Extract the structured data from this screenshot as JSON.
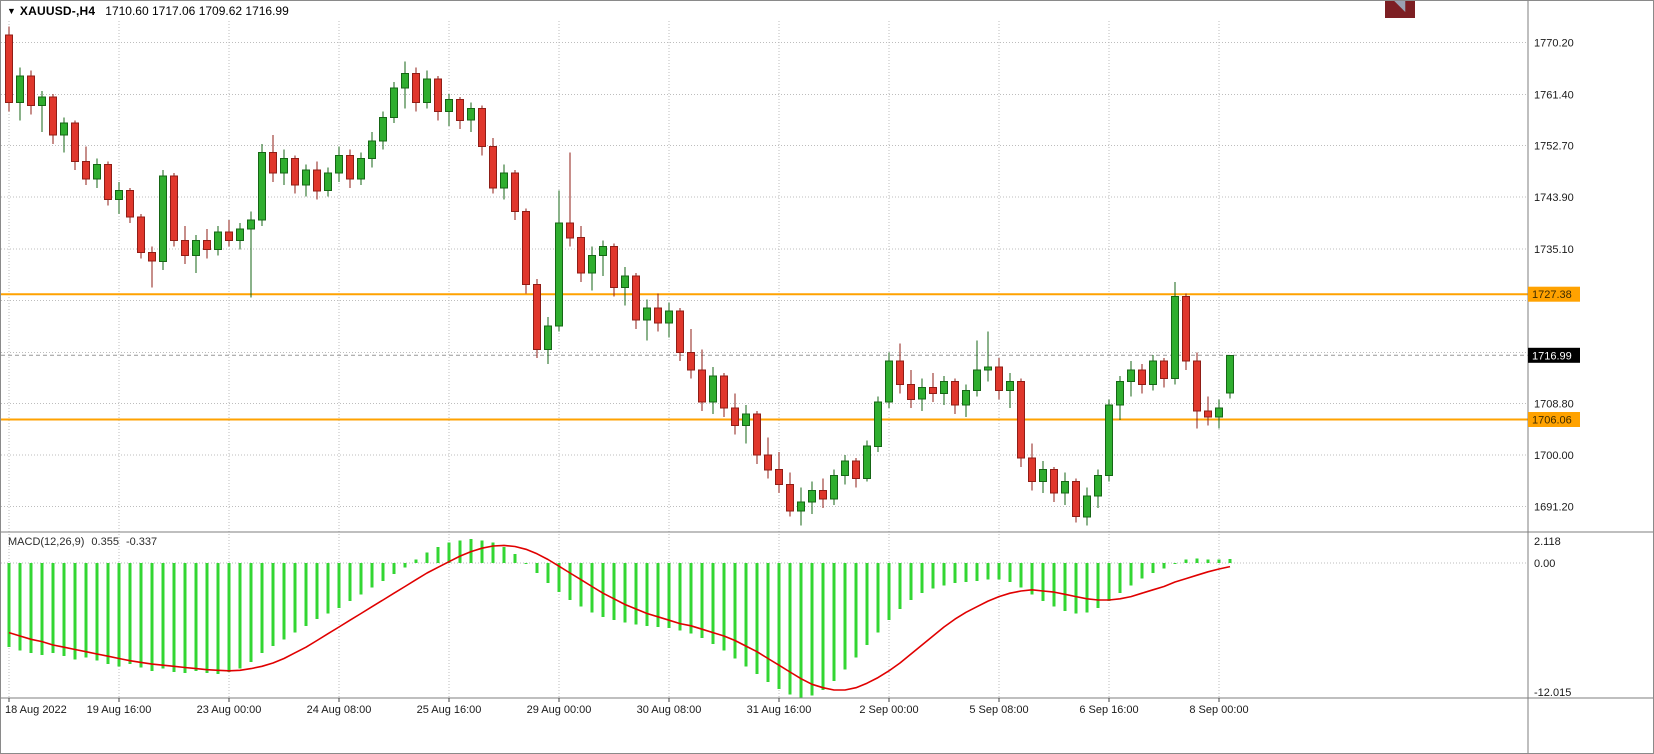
{
  "window": {
    "symbol_tf": "XAUUSD-,H4",
    "ohlc_text": "1710.60 1717.06 1709.62 1716.99"
  },
  "icons": {
    "dropdown": "▼",
    "shift_marker": "◥"
  },
  "colors": {
    "bull": "#2fae2f",
    "bull_border": "#156615",
    "bear": "#e0372c",
    "bear_border": "#8f1d16",
    "hline": "#ffa200",
    "macd_hist": "#33d633",
    "macd_signal": "#e00000",
    "grid": "#bdbdbd",
    "separator": "#7f7f7f",
    "current_tag_bg": "#000000",
    "current_tag_text": "#ffffff",
    "tag_text": "#3d2b00",
    "axis_text": "#1a1a1a"
  },
  "chart_data": {
    "type": "candlestick",
    "symbol": "XAUUSD-",
    "timeframe": "H4",
    "price_axis": {
      "ylim": [
        1686.9,
        1773.9
      ],
      "gridlines": [
        1770.2,
        1761.4,
        1752.7,
        1743.9,
        1735.1,
        1726.3,
        1717.5,
        1708.8,
        1700.0,
        1691.2
      ],
      "labels": [
        {
          "price": 1770.2,
          "text": "1770.20"
        },
        {
          "price": 1761.4,
          "text": "1761.40"
        },
        {
          "price": 1752.7,
          "text": "1752.70"
        },
        {
          "price": 1743.9,
          "text": "1743.90"
        },
        {
          "price": 1735.1,
          "text": "1735.10"
        },
        {
          "price": 1708.8,
          "text": "1708.80"
        },
        {
          "price": 1700.0,
          "text": "1700.00"
        },
        {
          "price": 1691.2,
          "text": "1691.20"
        }
      ],
      "current_price": "1716.99"
    },
    "hlines": [
      {
        "price": 1727.38,
        "label": "1727.38"
      },
      {
        "price": 1706.06,
        "label": "1706.06"
      }
    ],
    "time_labels": [
      {
        "i": 0,
        "label": "18 Aug 2022"
      },
      {
        "i": 10,
        "label": "19 Aug 16:00"
      },
      {
        "i": 20,
        "label": "23 Aug 00:00"
      },
      {
        "i": 30,
        "label": "24 Aug 08:00"
      },
      {
        "i": 40,
        "label": "25 Aug 16:00"
      },
      {
        "i": 50,
        "label": "29 Aug 00:00"
      },
      {
        "i": 60,
        "label": "30 Aug 08:00"
      },
      {
        "i": 70,
        "label": "31 Aug 16:00"
      },
      {
        "i": 80,
        "label": "2 Sep 00:00"
      },
      {
        "i": 90,
        "label": "5 Sep 08:00"
      },
      {
        "i": 100,
        "label": "6 Sep 16:00"
      },
      {
        "i": 110,
        "label": "8 Sep 00:00"
      }
    ],
    "candles": [
      [
        1771.5,
        1773.0,
        1758.5,
        1760.0
      ],
      [
        1760.0,
        1766.0,
        1757.0,
        1764.5
      ],
      [
        1764.5,
        1765.5,
        1758.0,
        1759.5
      ],
      [
        1759.5,
        1762.0,
        1755.0,
        1761.0
      ],
      [
        1761.0,
        1761.5,
        1753.0,
        1754.5
      ],
      [
        1754.5,
        1757.5,
        1751.5,
        1756.5
      ],
      [
        1756.5,
        1757.0,
        1748.5,
        1750.0
      ],
      [
        1750.0,
        1752.5,
        1746.0,
        1747.0
      ],
      [
        1747.0,
        1750.5,
        1745.5,
        1749.5
      ],
      [
        1749.5,
        1750.0,
        1742.5,
        1743.5
      ],
      [
        1743.5,
        1746.5,
        1741.0,
        1745.0
      ],
      [
        1745.0,
        1745.5,
        1739.5,
        1740.5
      ],
      [
        1740.5,
        1741.0,
        1733.5,
        1734.5
      ],
      [
        1734.5,
        1735.5,
        1728.5,
        1733.0
      ],
      [
        1733.0,
        1748.5,
        1731.5,
        1747.5
      ],
      [
        1747.5,
        1748.0,
        1735.5,
        1736.5
      ],
      [
        1736.5,
        1739.0,
        1732.5,
        1734.0
      ],
      [
        1734.0,
        1737.5,
        1731.0,
        1736.5
      ],
      [
        1736.5,
        1738.5,
        1733.5,
        1735.0
      ],
      [
        1735.0,
        1739.0,
        1734.0,
        1738.0
      ],
      [
        1738.0,
        1740.0,
        1735.5,
        1736.5
      ],
      [
        1736.5,
        1739.5,
        1735.0,
        1738.5
      ],
      [
        1738.5,
        1741.5,
        1726.8,
        1740.0
      ],
      [
        1740.0,
        1753.0,
        1739.0,
        1751.5
      ],
      [
        1751.5,
        1754.5,
        1746.5,
        1748.0
      ],
      [
        1748.0,
        1752.0,
        1746.0,
        1750.5
      ],
      [
        1750.5,
        1751.0,
        1744.5,
        1746.0
      ],
      [
        1746.0,
        1749.5,
        1744.0,
        1748.5
      ],
      [
        1748.5,
        1750.0,
        1743.5,
        1745.0
      ],
      [
        1745.0,
        1749.0,
        1744.0,
        1748.0
      ],
      [
        1748.0,
        1752.5,
        1746.5,
        1751.0
      ],
      [
        1751.0,
        1752.0,
        1745.5,
        1747.0
      ],
      [
        1747.0,
        1751.5,
        1746.0,
        1750.5
      ],
      [
        1750.5,
        1755.0,
        1749.0,
        1753.5
      ],
      [
        1753.5,
        1758.5,
        1752.0,
        1757.5
      ],
      [
        1757.5,
        1763.5,
        1756.5,
        1762.5
      ],
      [
        1762.5,
        1767.0,
        1759.0,
        1765.0
      ],
      [
        1765.0,
        1766.0,
        1758.5,
        1760.0
      ],
      [
        1760.0,
        1765.5,
        1759.0,
        1764.0
      ],
      [
        1764.0,
        1764.5,
        1757.0,
        1758.5
      ],
      [
        1758.5,
        1761.5,
        1756.0,
        1760.5
      ],
      [
        1760.5,
        1761.0,
        1755.5,
        1757.0
      ],
      [
        1757.0,
        1760.0,
        1755.0,
        1759.0
      ],
      [
        1759.0,
        1759.5,
        1751.0,
        1752.5
      ],
      [
        1752.5,
        1754.0,
        1744.5,
        1745.5
      ],
      [
        1745.5,
        1749.5,
        1743.5,
        1748.0
      ],
      [
        1748.0,
        1748.5,
        1740.0,
        1741.5
      ],
      [
        1741.5,
        1742.0,
        1727.5,
        1729.0
      ],
      [
        1729.0,
        1730.0,
        1716.5,
        1718.0
      ],
      [
        1718.0,
        1723.5,
        1715.5,
        1722.0
      ],
      [
        1722.0,
        1745.0,
        1721.0,
        1739.5
      ],
      [
        1739.5,
        1751.5,
        1735.5,
        1737.0
      ],
      [
        1737.0,
        1739.0,
        1729.5,
        1731.0
      ],
      [
        1731.0,
        1735.5,
        1728.0,
        1734.0
      ],
      [
        1734.0,
        1736.5,
        1730.5,
        1735.5
      ],
      [
        1735.5,
        1736.0,
        1727.0,
        1728.5
      ],
      [
        1728.5,
        1732.0,
        1725.5,
        1730.5
      ],
      [
        1730.5,
        1731.0,
        1721.5,
        1723.0
      ],
      [
        1723.0,
        1726.5,
        1719.5,
        1725.0
      ],
      [
        1725.0,
        1727.5,
        1721.0,
        1722.5
      ],
      [
        1722.5,
        1726.0,
        1720.0,
        1724.5
      ],
      [
        1724.5,
        1725.0,
        1716.0,
        1717.5
      ],
      [
        1717.5,
        1721.5,
        1713.0,
        1714.5
      ],
      [
        1714.5,
        1718.0,
        1707.5,
        1709.0
      ],
      [
        1709.0,
        1715.0,
        1707.0,
        1713.5
      ],
      [
        1713.5,
        1714.0,
        1706.5,
        1708.0
      ],
      [
        1708.0,
        1710.5,
        1703.5,
        1705.0
      ],
      [
        1705.0,
        1708.5,
        1702.0,
        1707.0
      ],
      [
        1707.0,
        1707.5,
        1698.5,
        1700.0
      ],
      [
        1700.0,
        1703.0,
        1696.0,
        1697.5
      ],
      [
        1697.5,
        1700.5,
        1693.5,
        1695.0
      ],
      [
        1695.0,
        1697.0,
        1689.5,
        1690.5
      ],
      [
        1690.5,
        1694.5,
        1688.0,
        1692.0
      ],
      [
        1692.0,
        1695.5,
        1690.0,
        1694.0
      ],
      [
        1694.0,
        1696.0,
        1691.0,
        1692.5
      ],
      [
        1692.5,
        1697.5,
        1691.5,
        1696.5
      ],
      [
        1696.5,
        1700.0,
        1695.0,
        1699.0
      ],
      [
        1699.0,
        1699.5,
        1694.5,
        1696.0
      ],
      [
        1696.0,
        1702.5,
        1695.5,
        1701.5
      ],
      [
        1701.5,
        1710.0,
        1700.5,
        1709.0
      ],
      [
        1709.0,
        1717.5,
        1708.0,
        1716.0
      ],
      [
        1716.0,
        1719.0,
        1710.5,
        1712.0
      ],
      [
        1712.0,
        1714.5,
        1708.0,
        1709.5
      ],
      [
        1709.5,
        1713.0,
        1707.5,
        1711.5
      ],
      [
        1711.5,
        1714.0,
        1709.0,
        1710.5
      ],
      [
        1710.5,
        1713.5,
        1708.5,
        1712.5
      ],
      [
        1712.5,
        1713.0,
        1707.0,
        1708.5
      ],
      [
        1708.5,
        1712.0,
        1706.5,
        1711.0
      ],
      [
        1711.0,
        1719.5,
        1710.0,
        1714.5
      ],
      [
        1714.5,
        1721.0,
        1712.5,
        1715.0
      ],
      [
        1715.0,
        1716.5,
        1709.5,
        1711.0
      ],
      [
        1711.0,
        1714.0,
        1708.0,
        1712.5
      ],
      [
        1712.5,
        1713.0,
        1698.0,
        1699.5
      ],
      [
        1699.5,
        1702.0,
        1694.0,
        1695.5
      ],
      [
        1695.5,
        1699.0,
        1693.5,
        1697.5
      ],
      [
        1697.5,
        1698.0,
        1692.0,
        1693.5
      ],
      [
        1693.5,
        1697.0,
        1691.5,
        1695.5
      ],
      [
        1695.5,
        1696.0,
        1688.5,
        1689.5
      ],
      [
        1689.5,
        1694.5,
        1688.0,
        1693.0
      ],
      [
        1693.0,
        1697.5,
        1691.0,
        1696.5
      ],
      [
        1696.5,
        1709.5,
        1695.5,
        1708.5
      ],
      [
        1708.5,
        1713.5,
        1706.0,
        1712.5
      ],
      [
        1712.5,
        1716.0,
        1710.0,
        1714.5
      ],
      [
        1714.5,
        1715.5,
        1710.5,
        1712.0
      ],
      [
        1712.0,
        1717.0,
        1711.0,
        1716.0
      ],
      [
        1716.0,
        1716.5,
        1711.5,
        1713.0
      ],
      [
        1713.0,
        1729.5,
        1712.0,
        1727.0
      ],
      [
        1727.0,
        1727.5,
        1714.5,
        1716.0
      ],
      [
        1716.0,
        1717.5,
        1704.5,
        1707.5
      ],
      [
        1707.5,
        1710.0,
        1705.0,
        1706.5
      ],
      [
        1706.5,
        1709.5,
        1704.5,
        1708.0
      ],
      [
        1710.6,
        1717.06,
        1709.62,
        1716.99
      ]
    ],
    "macd": {
      "label": "MACD(12,26,9)",
      "value": "0.355",
      "signal_value": "-0.337",
      "ylim": [
        -12.015,
        2.118
      ],
      "axis_labels": {
        "top": "2.118",
        "zero": "0.00",
        "bottom": "-12.015"
      },
      "hist": [
        -7.5,
        -7.8,
        -8.0,
        -8.2,
        -8.0,
        -8.3,
        -8.6,
        -8.4,
        -8.7,
        -9.0,
        -9.2,
        -9.0,
        -9.3,
        -9.6,
        -9.4,
        -9.7,
        -9.8,
        -9.6,
        -9.8,
        -9.9,
        -9.7,
        -9.4,
        -8.8,
        -8.0,
        -7.4,
        -6.8,
        -6.2,
        -5.6,
        -5.0,
        -4.5,
        -4.0,
        -3.4,
        -2.8,
        -2.2,
        -1.6,
        -1.0,
        -0.4,
        0.3,
        0.9,
        1.4,
        1.8,
        2.0,
        2.118,
        2.0,
        1.8,
        1.4,
        0.8,
        0.0,
        -0.9,
        -1.8,
        -2.6,
        -3.3,
        -3.9,
        -4.4,
        -4.8,
        -5.1,
        -5.3,
        -5.5,
        -5.6,
        -5.7,
        -5.8,
        -6.0,
        -6.3,
        -6.7,
        -7.2,
        -7.8,
        -8.5,
        -9.2,
        -9.9,
        -10.6,
        -11.2,
        -11.7,
        -12.015,
        -11.8,
        -11.3,
        -10.5,
        -9.5,
        -8.4,
        -7.3,
        -6.2,
        -5.1,
        -4.1,
        -3.3,
        -2.7,
        -2.3,
        -2.0,
        -1.8,
        -1.7,
        -1.6,
        -1.5,
        -1.5,
        -1.7,
        -2.2,
        -2.8,
        -3.4,
        -3.9,
        -4.3,
        -4.5,
        -4.4,
        -4.0,
        -3.4,
        -2.7,
        -2.0,
        -1.4,
        -0.9,
        -0.5,
        0.0,
        0.3,
        0.4,
        0.3,
        0.3,
        0.355
      ],
      "signal": [
        -6.2,
        -6.5,
        -6.8,
        -7.0,
        -7.3,
        -7.5,
        -7.7,
        -7.9,
        -8.1,
        -8.3,
        -8.5,
        -8.7,
        -8.85,
        -9.0,
        -9.1,
        -9.2,
        -9.3,
        -9.4,
        -9.5,
        -9.55,
        -9.6,
        -9.55,
        -9.4,
        -9.2,
        -8.9,
        -8.5,
        -8.0,
        -7.5,
        -6.9,
        -6.3,
        -5.7,
        -5.1,
        -4.5,
        -3.9,
        -3.3,
        -2.7,
        -2.1,
        -1.5,
        -0.9,
        -0.4,
        0.1,
        0.6,
        1.0,
        1.3,
        1.5,
        1.55,
        1.45,
        1.2,
        0.8,
        0.3,
        -0.3,
        -0.9,
        -1.5,
        -2.1,
        -2.7,
        -3.2,
        -3.7,
        -4.1,
        -4.5,
        -4.8,
        -5.1,
        -5.4,
        -5.6,
        -5.9,
        -6.2,
        -6.5,
        -6.9,
        -7.4,
        -7.9,
        -8.5,
        -9.1,
        -9.7,
        -10.3,
        -10.8,
        -11.1,
        -11.3,
        -11.3,
        -11.1,
        -10.7,
        -10.2,
        -9.6,
        -8.9,
        -8.1,
        -7.3,
        -6.5,
        -5.7,
        -5.0,
        -4.4,
        -3.9,
        -3.4,
        -3.0,
        -2.7,
        -2.5,
        -2.4,
        -2.5,
        -2.6,
        -2.8,
        -3.0,
        -3.2,
        -3.3,
        -3.3,
        -3.2,
        -3.0,
        -2.7,
        -2.4,
        -2.1,
        -1.7,
        -1.4,
        -1.1,
        -0.8,
        -0.55,
        -0.337
      ]
    }
  }
}
